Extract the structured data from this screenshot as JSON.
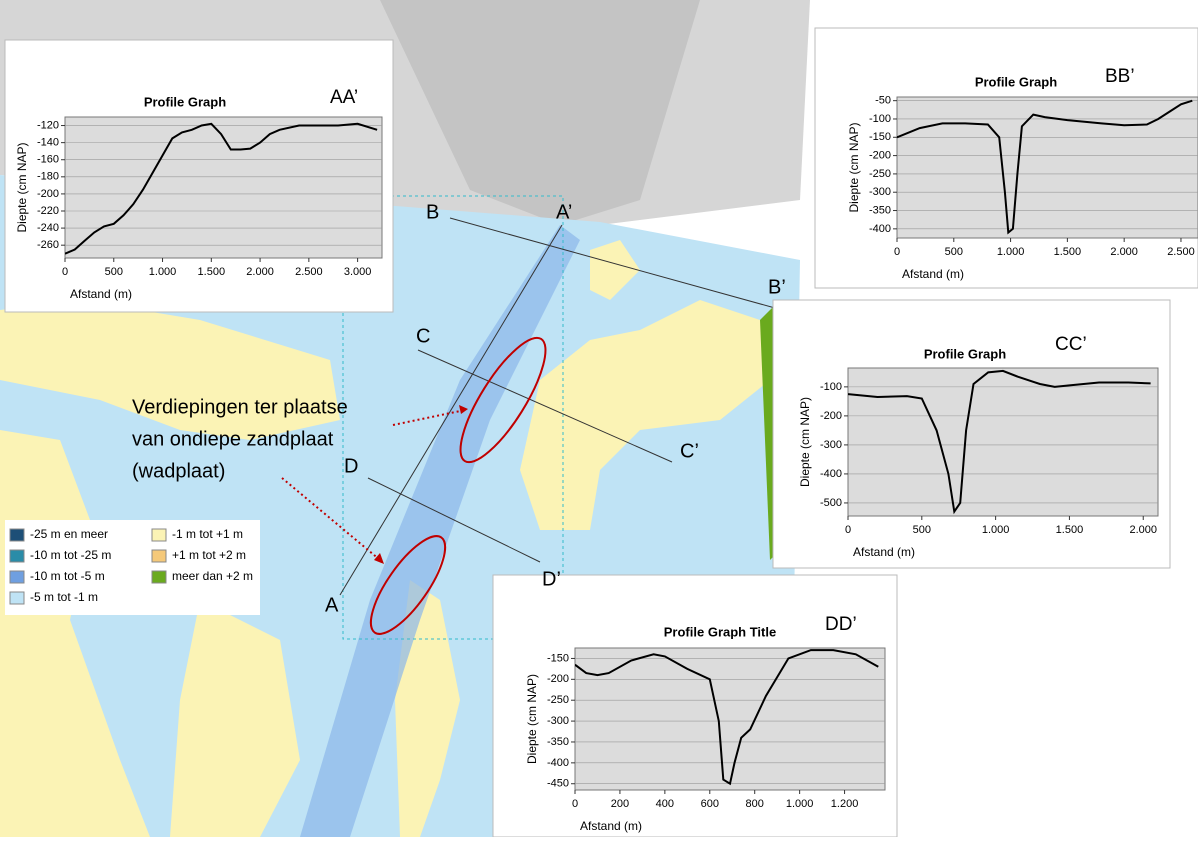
{
  "chart_data": [
    {
      "type": "line",
      "title": "Profile Graph",
      "label": "AA’",
      "ylabel": "Diepte (cm NAP)",
      "xlabel": "Afstand (m)",
      "color": "#000000",
      "grid": true,
      "xlim": [
        0,
        3250
      ],
      "xticks": [
        0,
        500,
        {
          "value": 1000,
          "label": "1.000"
        },
        {
          "value": 1500,
          "label": "1.500"
        },
        {
          "value": 2000,
          "label": "2.000"
        },
        {
          "value": 2500,
          "label": "2.500"
        },
        {
          "value": 3000,
          "label": "3.000"
        }
      ],
      "ylim": [
        -275,
        -110
      ],
      "yticks": [
        -120,
        -140,
        -160,
        -180,
        -200,
        -220,
        -240,
        -260
      ],
      "x": [
        0,
        100,
        200,
        300,
        400,
        500,
        600,
        700,
        800,
        900,
        1000,
        1100,
        1200,
        1300,
        1400,
        1500,
        1600,
        1700,
        1800,
        1900,
        2000,
        2100,
        2200,
        2400,
        2600,
        2800,
        3000,
        3200
      ],
      "values": [
        -270,
        -265,
        -255,
        -245,
        -238,
        -235,
        -225,
        -212,
        -195,
        -175,
        -155,
        -135,
        -128,
        -125,
        -120,
        -118,
        -130,
        -148,
        -148,
        -147,
        -140,
        -130,
        -125,
        -120,
        -120,
        -120,
        -118,
        -125
      ]
    },
    {
      "type": "line",
      "title": "Profile Graph",
      "label": "BB’",
      "ylabel": "Diepte (cm NAP)",
      "xlabel": "Afstand (m)",
      "color": "#000000",
      "grid": true,
      "xlim": [
        0,
        2650
      ],
      "xticks": [
        0,
        500,
        {
          "value": 1000,
          "label": "1.000"
        },
        {
          "value": 1500,
          "label": "1.500"
        },
        {
          "value": 2000,
          "label": "2.000"
        },
        {
          "value": 2500,
          "label": "2.500"
        }
      ],
      "ylim": [
        -425,
        -40
      ],
      "yticks": [
        -50,
        -100,
        -150,
        -200,
        -250,
        -300,
        -350,
        -400
      ],
      "x": [
        0,
        200,
        400,
        600,
        800,
        900,
        950,
        980,
        1020,
        1060,
        1100,
        1200,
        1300,
        1500,
        1800,
        2000,
        2200,
        2300,
        2400,
        2500,
        2600
      ],
      "values": [
        -150,
        -125,
        -112,
        -112,
        -115,
        -150,
        -300,
        -410,
        -400,
        -250,
        -120,
        -88,
        -95,
        -103,
        -112,
        -117,
        -115,
        -100,
        -80,
        -60,
        -50
      ]
    },
    {
      "type": "line",
      "title": "Profile Graph",
      "label": "CC’",
      "ylabel": "Diepte (cm NAP)",
      "xlabel": "Afstand (m)",
      "color": "#000000",
      "grid": true,
      "xlim": [
        0,
        2100
      ],
      "xticks": [
        0,
        500,
        {
          "value": 1000,
          "label": "1.000"
        },
        {
          "value": 1500,
          "label": "1.500"
        },
        {
          "value": 2000,
          "label": "2.000"
        }
      ],
      "ylim": [
        -545,
        -35
      ],
      "yticks": [
        -100,
        -200,
        -300,
        -400,
        -500
      ],
      "x": [
        0,
        200,
        400,
        500,
        600,
        680,
        720,
        760,
        800,
        850,
        950,
        1050,
        1150,
        1300,
        1400,
        1500,
        1700,
        1900,
        2050
      ],
      "values": [
        -125,
        -135,
        -132,
        -140,
        -250,
        -400,
        -530,
        -500,
        -250,
        -90,
        -50,
        -45,
        -65,
        -90,
        -100,
        -95,
        -85,
        -85,
        -88
      ]
    },
    {
      "type": "line",
      "title": "Profile Graph Title",
      "label": "DD’",
      "ylabel": "Diepte (cm NAP)",
      "xlabel": "Afstand (m)",
      "color": "#000000",
      "grid": true,
      "xlim": [
        0,
        1380
      ],
      "xticks": [
        0,
        200,
        400,
        600,
        800,
        {
          "value": 1000,
          "label": "1.000"
        },
        {
          "value": 1200,
          "label": "1.200"
        }
      ],
      "ylim": [
        -465,
        -125
      ],
      "yticks": [
        -150,
        -200,
        -250,
        -300,
        -350,
        -400,
        -450
      ],
      "x": [
        0,
        50,
        100,
        150,
        250,
        350,
        400,
        500,
        600,
        640,
        660,
        690,
        710,
        740,
        780,
        850,
        950,
        1050,
        1150,
        1250,
        1350
      ],
      "values": [
        -165,
        -185,
        -190,
        -185,
        -155,
        -140,
        -145,
        -175,
        -200,
        -300,
        -440,
        -450,
        -400,
        -340,
        -320,
        -240,
        -150,
        -130,
        -130,
        -140,
        -170
      ]
    }
  ],
  "map": {
    "section_labels": [
      "A",
      "A’",
      "B",
      "B’",
      "C",
      "C’",
      "D",
      "D’"
    ],
    "annotation": [
      "Verdiepingen ter plaatse",
      "van ondiepe zandplaat",
      "(wadplaat)"
    ],
    "legend": [
      {
        "label": "-25 m en meer",
        "color": "#1d4f77"
      },
      {
        "label": "-10 m tot -25 m",
        "color": "#2a8ca8"
      },
      {
        "label": "-10 m tot -5 m",
        "color": "#6f9fe0"
      },
      {
        "label": "-5 m tot -1 m",
        "color": "#bfe3f5"
      },
      {
        "label": "-1 m tot +1 m",
        "color": "#fbf3b5"
      },
      {
        "label": "+1 m tot +2 m",
        "color": "#f5c97a"
      },
      {
        "label": "meer dan +2 m",
        "color": "#6aaa1e"
      }
    ]
  }
}
